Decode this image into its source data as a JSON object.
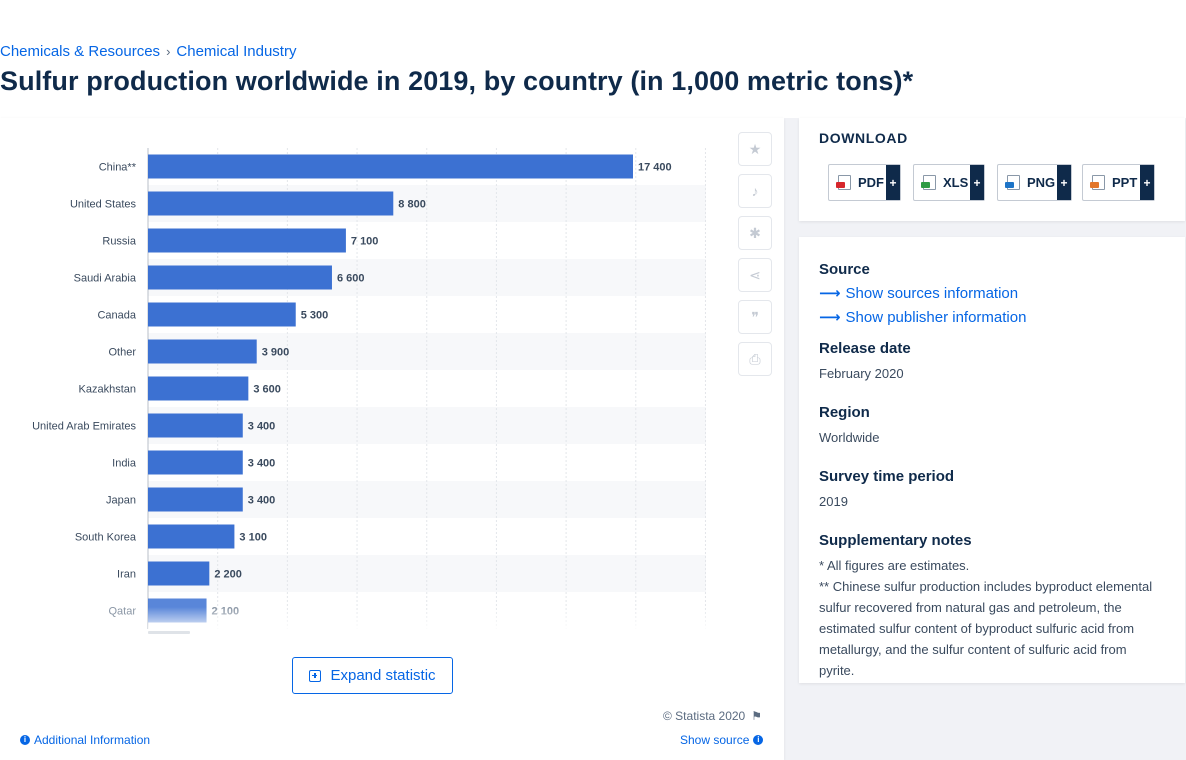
{
  "breadcrumb": {
    "first": "Chemicals & Resources",
    "separator": "›",
    "second": "Chemical Industry"
  },
  "page_title": "Sulfur production worldwide in 2019, by country (in 1,000 metric tons)*",
  "colors": {
    "bar": "#3c71d2",
    "accent": "#0666e5",
    "text": "#0f2a4a"
  },
  "toolbar_icons": [
    "star-icon",
    "bell-icon",
    "gear-icon",
    "share-icon",
    "quote-icon",
    "print-icon"
  ],
  "expand_label": "Expand statistic",
  "copyright": "© Statista 2020",
  "additional_info": "Additional Information",
  "show_source": "Show source",
  "download": {
    "title": "DOWNLOAD",
    "buttons": [
      {
        "label": "PDF",
        "plus": "+",
        "tag_color": "#d6262b"
      },
      {
        "label": "XLS",
        "plus": "+",
        "tag_color": "#2e9b44"
      },
      {
        "label": "PNG",
        "plus": "+",
        "tag_color": "#1d74c7"
      },
      {
        "label": "PPT",
        "plus": "+",
        "tag_color": "#e2762b"
      }
    ]
  },
  "info": {
    "source_title": "Source",
    "show_sources": "Show sources information",
    "show_publisher": "Show publisher information",
    "release_title": "Release date",
    "release_value": "February 2020",
    "region_title": "Region",
    "region_value": "Worldwide",
    "survey_title": "Survey time period",
    "survey_value": "2019",
    "notes_title": "Supplementary notes",
    "note1": "* All figures are estimates.",
    "note2": "** Chinese sulfur production includes byproduct elemental sulfur recovered from natural gas and petroleum, the estimated sulfur content of byproduct sulfuric acid from metallurgy, and the sulfur content of sulfuric acid from pyrite."
  },
  "chart_data": {
    "type": "bar",
    "orientation": "horizontal",
    "title": "",
    "xlabel": "",
    "ylabel": "",
    "grid": true,
    "xlim": [
      0,
      20000
    ],
    "categories": [
      "China**",
      "United States",
      "Russia",
      "Saudi Arabia",
      "Canada",
      "Other",
      "Kazakhstan",
      "United Arab Emirates",
      "India",
      "Japan",
      "South Korea",
      "Iran",
      "Qatar"
    ],
    "values": [
      17400,
      8800,
      7100,
      6600,
      5300,
      3900,
      3600,
      3400,
      3400,
      3400,
      3100,
      2200,
      2100
    ],
    "value_labels": [
      "17 400",
      "8 800",
      "7 100",
      "6 600",
      "5 300",
      "3 900",
      "3 600",
      "3 400",
      "3 400",
      "3 400",
      "3 100",
      "2 200",
      "2 100"
    ]
  }
}
